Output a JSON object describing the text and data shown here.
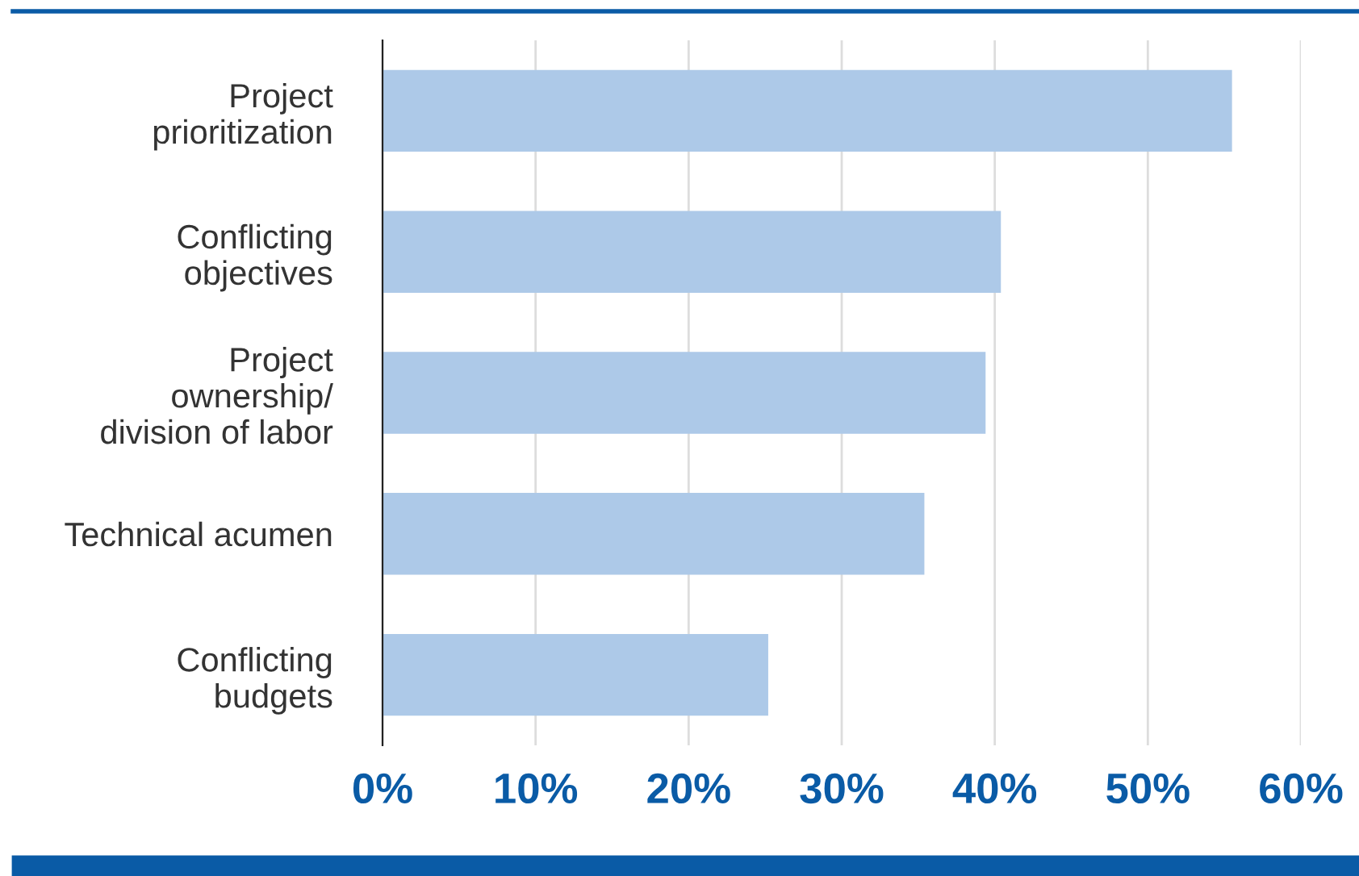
{
  "chart_data": {
    "type": "bar",
    "orientation": "horizontal",
    "categories": [
      "Project\nprioritization",
      "Conflicting\nobjectives",
      "Project\nownership/\ndivision of labor",
      "Technical acumen",
      "Conflicting\nbudgets"
    ],
    "values": [
      55.5,
      40.4,
      39.4,
      35.4,
      25.2
    ],
    "color": "#adc9e8",
    "xlim": [
      0,
      60
    ],
    "xticks": [
      {
        "value": 0,
        "label": "0%"
      },
      {
        "value": 10,
        "label": "10%"
      },
      {
        "value": 20,
        "label": "20%"
      },
      {
        "value": 30,
        "label": "30%"
      },
      {
        "value": 40,
        "label": "40%"
      },
      {
        "value": 50,
        "label": "50%"
      },
      {
        "value": 60,
        "label": "60%"
      }
    ],
    "grid": "x"
  }
}
